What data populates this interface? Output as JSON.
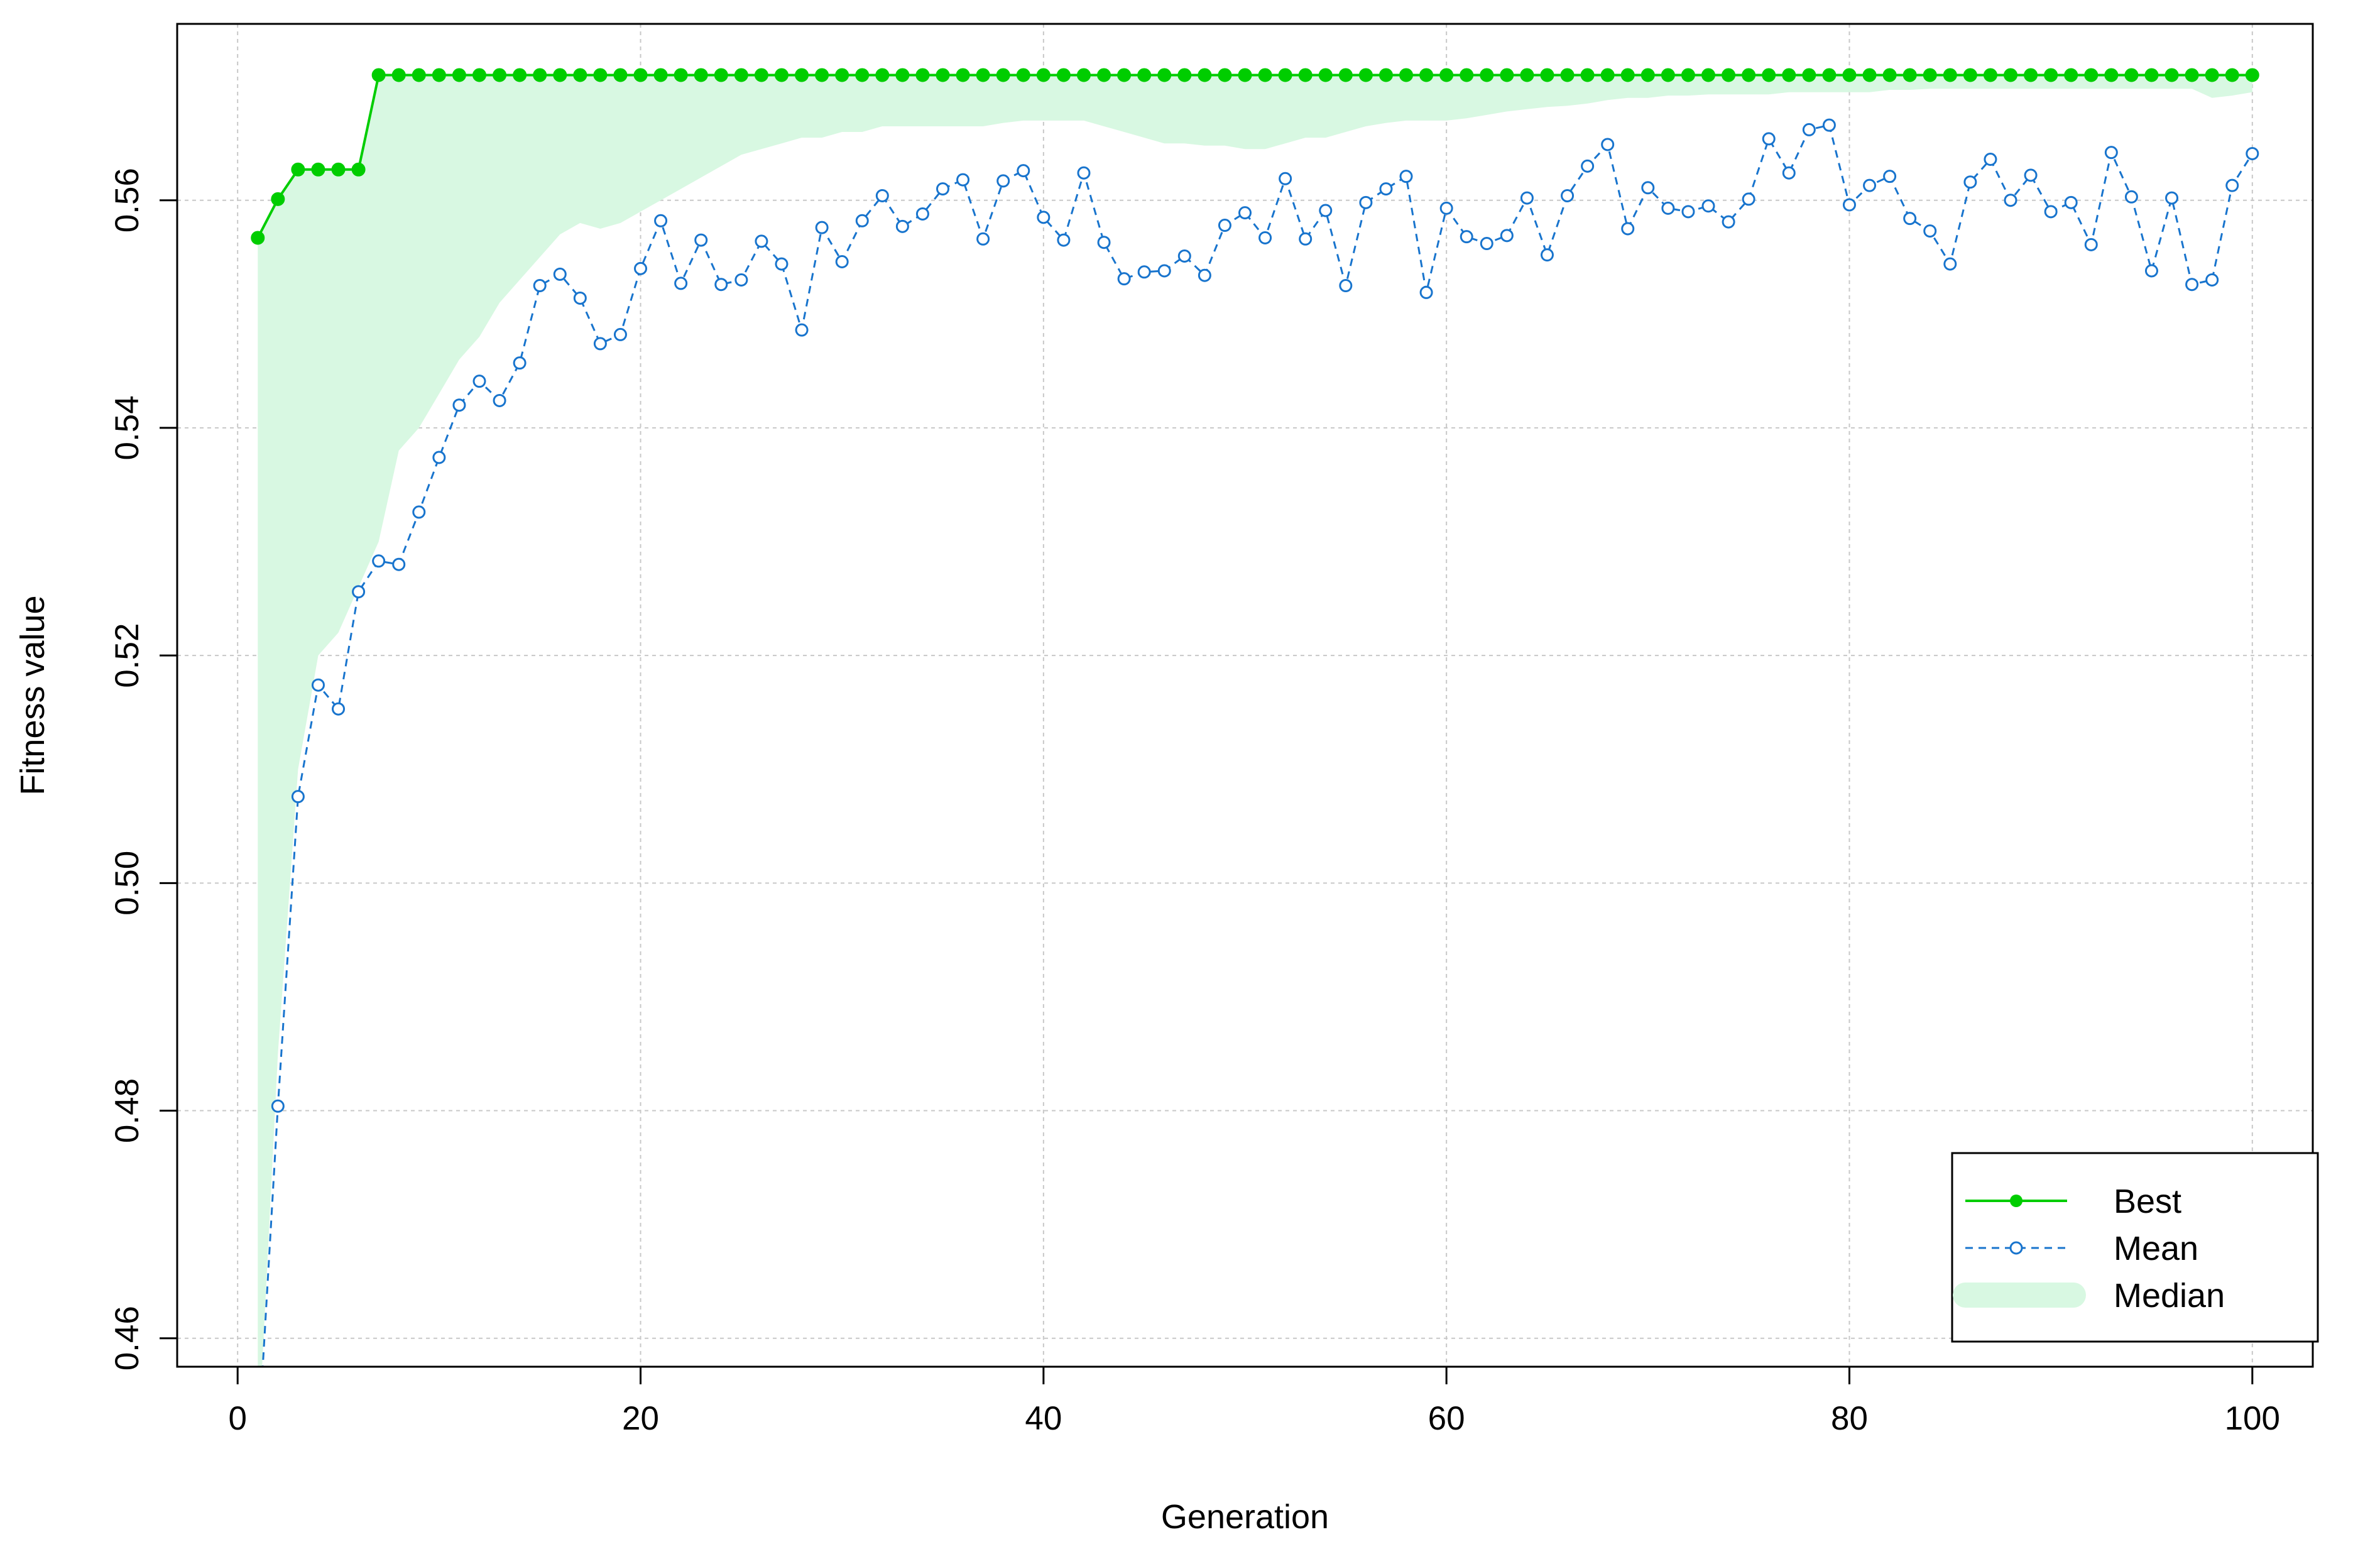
{
  "chart_data": {
    "type": "line",
    "title": "",
    "xlabel": "Generation",
    "ylabel": "Fitness value",
    "xlim": [
      -3,
      103
    ],
    "ylim": [
      0.4575,
      0.5755
    ],
    "x_ticks": [
      0,
      20,
      40,
      60,
      80,
      100
    ],
    "x_tick_labels": [
      "0",
      "20",
      "40",
      "60",
      "80",
      "100"
    ],
    "y_ticks": [
      0.46,
      0.48,
      0.5,
      0.52,
      0.54,
      0.56
    ],
    "y_tick_labels": [
      "0.46",
      "0.48",
      "0.50",
      "0.52",
      "0.54",
      "0.56"
    ],
    "grid": true,
    "legend_position": "bottom-right",
    "colors": {
      "best": "#00CD00",
      "mean": "#1874CD",
      "median": "#D8F8E2",
      "grid": "#C8C8C8",
      "axis": "#000000"
    },
    "x": [
      1,
      2,
      3,
      4,
      5,
      6,
      7,
      8,
      9,
      10,
      11,
      12,
      13,
      14,
      15,
      16,
      17,
      18,
      19,
      20,
      21,
      22,
      23,
      24,
      25,
      26,
      27,
      28,
      29,
      30,
      31,
      32,
      33,
      34,
      35,
      36,
      37,
      38,
      39,
      40,
      41,
      42,
      43,
      44,
      45,
      46,
      47,
      48,
      49,
      50,
      51,
      52,
      53,
      54,
      55,
      56,
      57,
      58,
      59,
      60,
      61,
      62,
      63,
      64,
      65,
      66,
      67,
      68,
      69,
      70,
      71,
      72,
      73,
      74,
      75,
      76,
      77,
      78,
      79,
      80,
      81,
      82,
      83,
      84,
      85,
      86,
      87,
      88,
      89,
      90,
      91,
      92,
      93,
      94,
      95,
      96,
      97,
      98,
      99,
      100
    ],
    "series": [
      {
        "name": "Best",
        "style": "solid-filled-dots",
        "values": [
          0.5567,
          0.5601,
          0.5627,
          0.5627,
          0.5627,
          0.5627,
          0.571,
          0.571,
          0.571,
          0.571,
          0.571,
          0.571,
          0.571,
          0.571,
          0.571,
          0.571,
          0.571,
          0.571,
          0.571,
          0.571,
          0.571,
          0.571,
          0.571,
          0.571,
          0.571,
          0.571,
          0.571,
          0.571,
          0.571,
          0.571,
          0.571,
          0.571,
          0.571,
          0.571,
          0.571,
          0.571,
          0.571,
          0.571,
          0.571,
          0.571,
          0.571,
          0.571,
          0.571,
          0.571,
          0.571,
          0.571,
          0.571,
          0.571,
          0.571,
          0.571,
          0.571,
          0.571,
          0.571,
          0.571,
          0.571,
          0.571,
          0.571,
          0.571,
          0.571,
          0.571,
          0.571,
          0.571,
          0.571,
          0.571,
          0.571,
          0.571,
          0.571,
          0.571,
          0.571,
          0.571,
          0.571,
          0.571,
          0.571,
          0.571,
          0.571,
          0.571,
          0.571,
          0.571,
          0.571,
          0.571,
          0.571,
          0.571,
          0.571,
          0.571,
          0.571,
          0.571,
          0.571,
          0.571,
          0.571,
          0.571,
          0.571,
          0.571,
          0.571,
          0.571,
          0.571,
          0.571,
          0.571,
          0.571,
          0.571,
          0.571
        ]
      },
      {
        "name": "Mean",
        "style": "dashed-open-circles",
        "values": [
          0.45,
          0.4804,
          0.5076,
          0.5174,
          0.5153,
          0.5256,
          0.5283,
          0.528,
          0.5326,
          0.5374,
          0.542,
          0.5441,
          0.5424,
          0.5457,
          0.5525,
          0.5535,
          0.5514,
          0.5474,
          0.5482,
          0.554,
          0.5582,
          0.5527,
          0.5565,
          0.5526,
          0.553,
          0.5564,
          0.5544,
          0.5486,
          0.5576,
          0.5546,
          0.5582,
          0.5604,
          0.5577,
          0.5588,
          0.561,
          0.5618,
          0.5566,
          0.5617,
          0.5626,
          0.5585,
          0.5565,
          0.5624,
          0.5563,
          0.5531,
          0.5537,
          0.5538,
          0.5551,
          0.5534,
          0.5578,
          0.5589,
          0.5567,
          0.5619,
          0.5566,
          0.5591,
          0.5525,
          0.5598,
          0.561,
          0.5621,
          0.5519,
          0.5593,
          0.5568,
          0.5562,
          0.5569,
          0.5602,
          0.5552,
          0.5604,
          0.563,
          0.5649,
          0.5575,
          0.5611,
          0.5593,
          0.559,
          0.5595,
          0.5581,
          0.5601,
          0.5654,
          0.5624,
          0.5662,
          0.5666,
          0.5596,
          0.5613,
          0.5621,
          0.5584,
          0.5573,
          0.5544,
          0.5616,
          0.5636,
          0.56,
          0.5622,
          0.559,
          0.5598,
          0.5561,
          0.5642,
          0.5603,
          0.5538,
          0.5602,
          0.5526,
          0.553,
          0.5613,
          0.5641
        ]
      },
      {
        "name": "Median",
        "style": "filled-band",
        "values": [
          0.45,
          0.485,
          0.51,
          0.52,
          0.522,
          0.526,
          0.53,
          0.538,
          0.54,
          0.543,
          0.546,
          0.548,
          0.551,
          0.553,
          0.555,
          0.557,
          0.558,
          0.5575,
          0.558,
          0.559,
          0.56,
          0.561,
          0.562,
          0.563,
          0.564,
          0.5645,
          0.565,
          0.5655,
          0.5655,
          0.566,
          0.566,
          0.5665,
          0.5665,
          0.5665,
          0.5665,
          0.5665,
          0.5665,
          0.5668,
          0.567,
          0.567,
          0.567,
          0.567,
          0.5665,
          0.566,
          0.5655,
          0.565,
          0.565,
          0.5648,
          0.5648,
          0.5645,
          0.5645,
          0.565,
          0.5655,
          0.5655,
          0.566,
          0.5665,
          0.5668,
          0.567,
          0.567,
          0.567,
          0.5672,
          0.5675,
          0.5678,
          0.568,
          0.5682,
          0.5683,
          0.5685,
          0.5688,
          0.569,
          0.569,
          0.5692,
          0.5692,
          0.5693,
          0.5693,
          0.5693,
          0.5693,
          0.5695,
          0.5695,
          0.5695,
          0.5695,
          0.5695,
          0.5697,
          0.5697,
          0.5698,
          0.5698,
          0.5698,
          0.5698,
          0.5698,
          0.5698,
          0.5698,
          0.5698,
          0.5698,
          0.5698,
          0.5698,
          0.5698,
          0.5698,
          0.5698,
          0.569,
          0.5692,
          0.5695
        ]
      }
    ]
  }
}
